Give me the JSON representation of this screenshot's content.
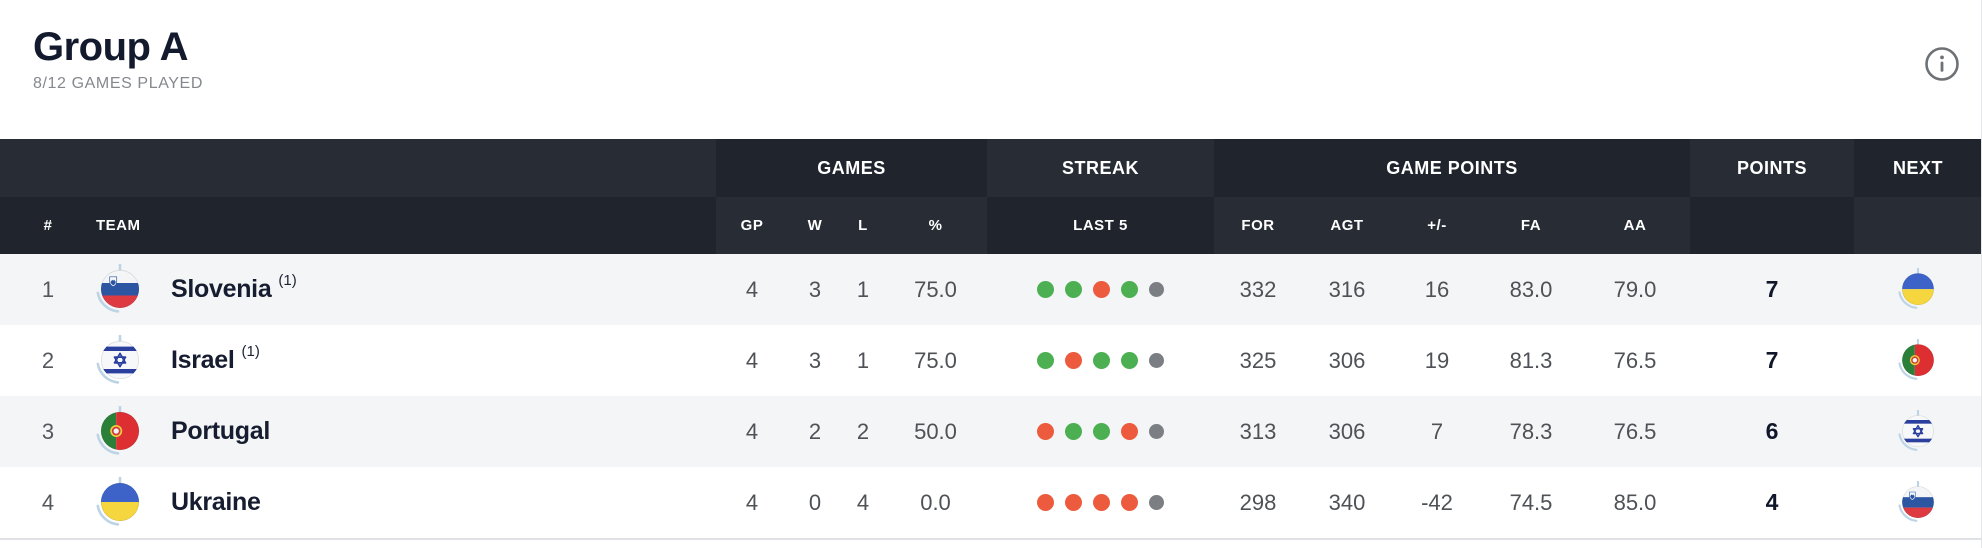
{
  "header": {
    "title": "Group A",
    "subtitle": "8/12 GAMES PLAYED",
    "info_icon": "info-circle-icon"
  },
  "colors": {
    "win": "#4cb052",
    "loss": "#ec5b3d",
    "future": "#7b7e83",
    "header_dark": "#1f242d",
    "header_light": "#272c35",
    "row_alt": "#f4f5f6",
    "accent_text": "#10172a",
    "value_text": "#4e5156",
    "flag_arc": "#bcd4e6"
  },
  "table": {
    "groups": {
      "games": "GAMES",
      "streak": "STREAK",
      "game_points": "GAME POINTS",
      "points": "POINTS",
      "next": "NEXT"
    },
    "columns": {
      "rank": "#",
      "team": "TEAM",
      "gp": "GP",
      "w": "W",
      "l": "L",
      "pct": "%",
      "last5": "LAST 5",
      "for": "FOR",
      "agt": "AGT",
      "plus_minus": "+/-",
      "fa": "FA",
      "aa": "AA"
    },
    "rows": [
      {
        "rank": "1",
        "team": "Slovenia",
        "note": "(1)",
        "flag": "slovenia",
        "gp": "4",
        "w": "3",
        "l": "1",
        "pct": "75.0",
        "last5": [
          "w",
          "w",
          "l",
          "w",
          "none"
        ],
        "for": "332",
        "agt": "316",
        "plus_minus": "16",
        "fa": "83.0",
        "aa": "79.0",
        "points": "7",
        "next_flag": "ukraine"
      },
      {
        "rank": "2",
        "team": "Israel",
        "note": "(1)",
        "flag": "israel",
        "gp": "4",
        "w": "3",
        "l": "1",
        "pct": "75.0",
        "last5": [
          "w",
          "l",
          "w",
          "w",
          "none"
        ],
        "for": "325",
        "agt": "306",
        "plus_minus": "19",
        "fa": "81.3",
        "aa": "76.5",
        "points": "7",
        "next_flag": "portugal"
      },
      {
        "rank": "3",
        "team": "Portugal",
        "note": "",
        "flag": "portugal",
        "gp": "4",
        "w": "2",
        "l": "2",
        "pct": "50.0",
        "last5": [
          "l",
          "w",
          "w",
          "l",
          "none"
        ],
        "for": "313",
        "agt": "306",
        "plus_minus": "7",
        "fa": "78.3",
        "aa": "76.5",
        "points": "6",
        "next_flag": "israel"
      },
      {
        "rank": "4",
        "team": "Ukraine",
        "note": "",
        "flag": "ukraine",
        "gp": "4",
        "w": "0",
        "l": "4",
        "pct": "0.0",
        "last5": [
          "l",
          "l",
          "l",
          "l",
          "none"
        ],
        "for": "298",
        "agt": "340",
        "plus_minus": "-42",
        "fa": "74.5",
        "aa": "85.0",
        "points": "4",
        "next_flag": "slovenia"
      }
    ]
  }
}
